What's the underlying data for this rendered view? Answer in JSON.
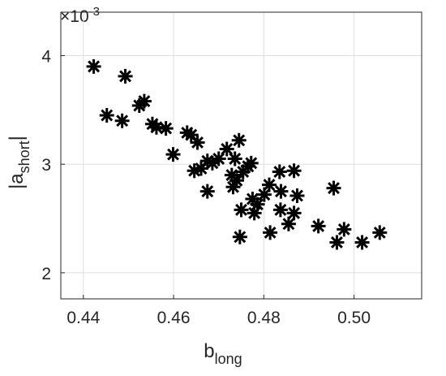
{
  "chart_data": {
    "type": "scatter",
    "x_label": {
      "main": "b",
      "sub": "long"
    },
    "y_label": {
      "main": "|a",
      "sub": "short",
      "end": "|"
    },
    "y_exponent": {
      "base": "×10",
      "power": "-3"
    },
    "color": "#000000",
    "grid": true,
    "marker": "asterisk",
    "xlim": [
      0.435,
      0.515
    ],
    "xticks": [
      {
        "value": 0.44,
        "label": "0.44"
      },
      {
        "value": 0.46,
        "label": "0.46"
      },
      {
        "value": 0.48,
        "label": "0.48"
      },
      {
        "value": 0.5,
        "label": "0.50"
      }
    ],
    "ylim": [
      1.76,
      4.4
    ],
    "yticks": [
      2,
      3,
      4
    ],
    "series": [
      {
        "x": [
          0.4423,
          0.4493,
          0.4452,
          0.4486,
          0.4524,
          0.4535,
          0.4553,
          0.4562,
          0.4583,
          0.4599,
          0.463,
          0.4639,
          0.4653,
          0.4646,
          0.4661,
          0.4675,
          0.4686,
          0.4675,
          0.47,
          0.4718,
          0.4736,
          0.4745,
          0.4729,
          0.474,
          0.4732,
          0.4754,
          0.4765,
          0.4772,
          0.475,
          0.4775,
          0.4786,
          0.4779,
          0.4801,
          0.4812,
          0.4835,
          0.4838,
          0.4837,
          0.4855,
          0.4814,
          0.4747,
          0.4867,
          0.4874,
          0.4867,
          0.4921,
          0.4955,
          0.4962,
          0.4978,
          0.5018,
          0.5057
        ],
        "values": [
          3.9,
          3.81,
          3.45,
          3.4,
          3.54,
          3.58,
          3.37,
          3.34,
          3.33,
          3.09,
          3.29,
          3.27,
          3.2,
          2.94,
          2.96,
          3.03,
          3.01,
          2.75,
          3.05,
          3.14,
          3.05,
          3.22,
          2.9,
          2.85,
          2.79,
          2.93,
          2.98,
          3.01,
          2.58,
          2.68,
          2.63,
          2.55,
          2.72,
          2.81,
          2.93,
          2.75,
          2.58,
          2.45,
          2.37,
          2.33,
          2.55,
          2.71,
          2.94,
          2.43,
          2.78,
          2.28,
          2.4,
          2.28,
          2.37
        ]
      }
    ]
  }
}
